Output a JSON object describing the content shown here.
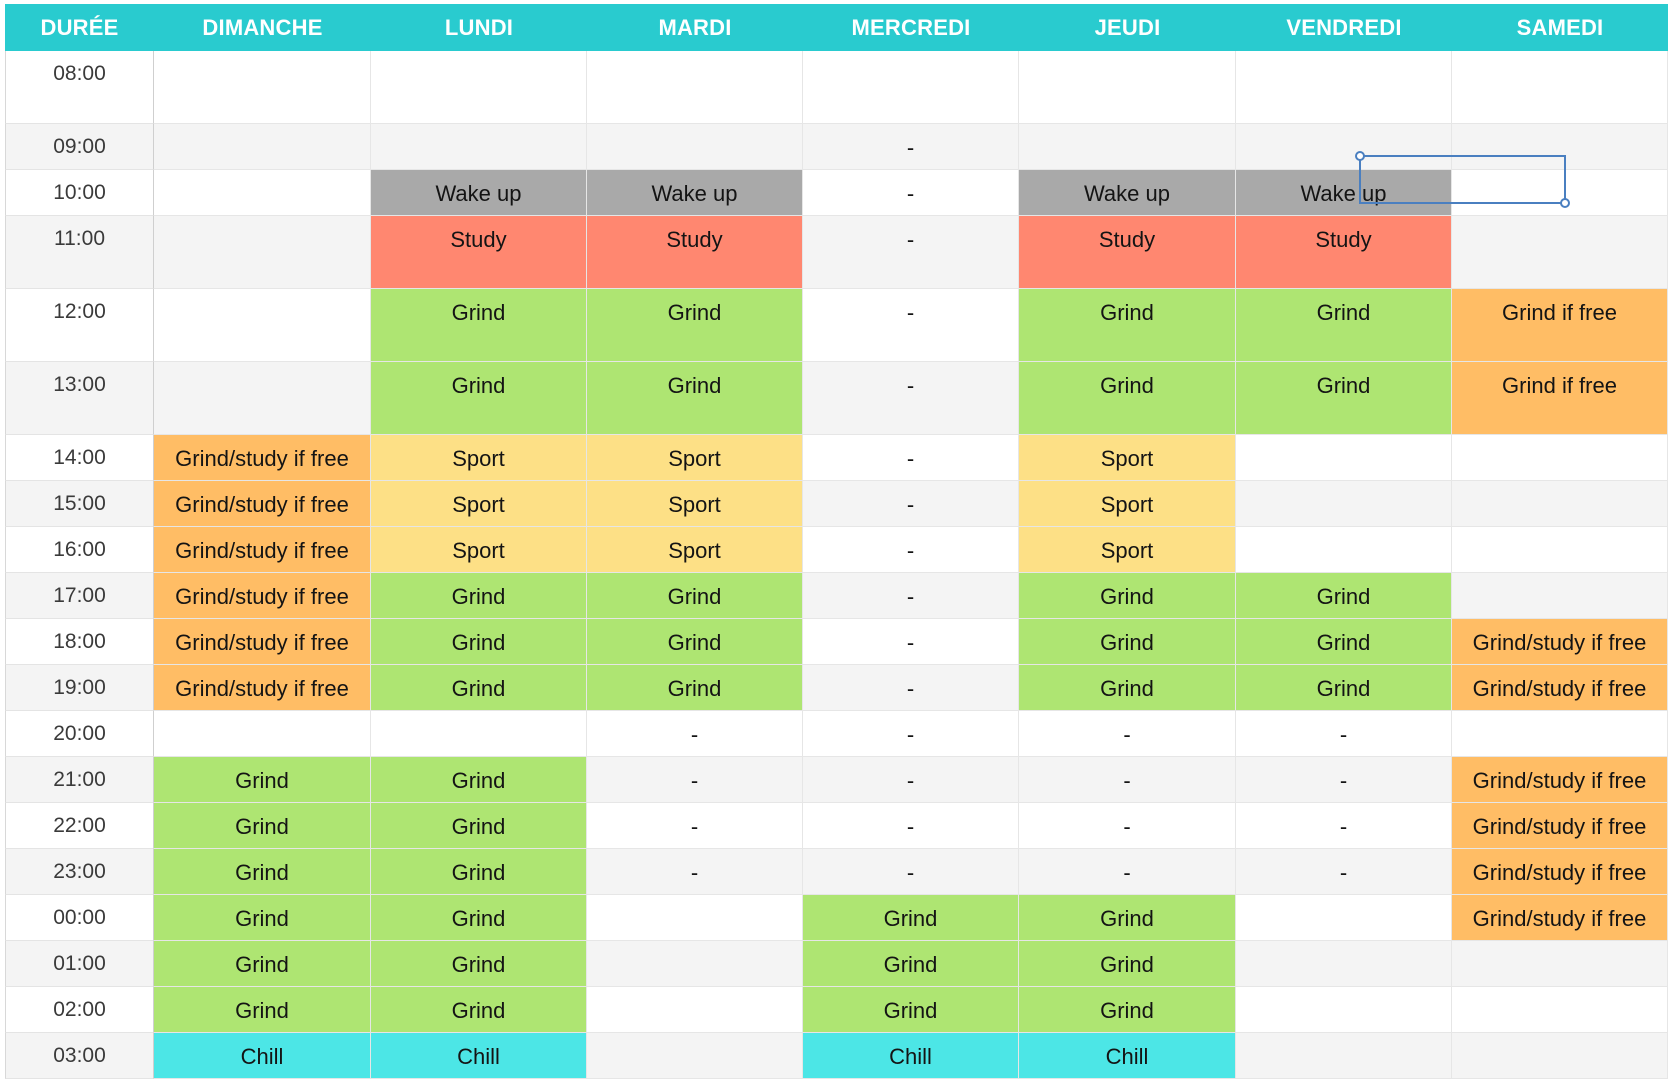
{
  "headers": [
    "DURÉE",
    "DIMANCHE",
    "LUNDI",
    "MARDI",
    "MERCREDI",
    "JEUDI",
    "VENDREDI",
    "SAMEDI"
  ],
  "rows": [
    {
      "time": "08:00",
      "tall": true,
      "cells": [
        {
          "t": "",
          "c": ""
        },
        {
          "t": "",
          "c": ""
        },
        {
          "t": "",
          "c": ""
        },
        {
          "t": "",
          "c": ""
        },
        {
          "t": "",
          "c": ""
        },
        {
          "t": "",
          "c": ""
        },
        {
          "t": "",
          "c": ""
        }
      ]
    },
    {
      "time": "09:00",
      "tall": false,
      "cells": [
        {
          "t": "",
          "c": ""
        },
        {
          "t": "",
          "c": ""
        },
        {
          "t": "",
          "c": ""
        },
        {
          "t": "-",
          "c": ""
        },
        {
          "t": "",
          "c": ""
        },
        {
          "t": "",
          "c": ""
        },
        {
          "t": "",
          "c": ""
        }
      ]
    },
    {
      "time": "10:00",
      "tall": false,
      "cells": [
        {
          "t": "",
          "c": ""
        },
        {
          "t": "Wake up",
          "c": "wake"
        },
        {
          "t": "Wake up",
          "c": "wake"
        },
        {
          "t": "-",
          "c": ""
        },
        {
          "t": "Wake up",
          "c": "wake"
        },
        {
          "t": "Wake up",
          "c": "wake"
        },
        {
          "t": "",
          "c": ""
        }
      ]
    },
    {
      "time": "11:00",
      "tall": true,
      "cells": [
        {
          "t": "",
          "c": ""
        },
        {
          "t": "Study",
          "c": "study"
        },
        {
          "t": "Study",
          "c": "study"
        },
        {
          "t": "-",
          "c": ""
        },
        {
          "t": "Study",
          "c": "study"
        },
        {
          "t": "Study",
          "c": "study"
        },
        {
          "t": "",
          "c": ""
        }
      ]
    },
    {
      "time": "12:00",
      "tall": true,
      "cells": [
        {
          "t": "",
          "c": ""
        },
        {
          "t": "Grind",
          "c": "grind"
        },
        {
          "t": "Grind",
          "c": "grind"
        },
        {
          "t": "-",
          "c": ""
        },
        {
          "t": "Grind",
          "c": "grind"
        },
        {
          "t": "Grind",
          "c": "grind"
        },
        {
          "t": "Grind if free",
          "c": "ifree"
        }
      ]
    },
    {
      "time": "13:00",
      "tall": true,
      "cells": [
        {
          "t": "",
          "c": ""
        },
        {
          "t": "Grind",
          "c": "grind"
        },
        {
          "t": "Grind",
          "c": "grind"
        },
        {
          "t": "-",
          "c": ""
        },
        {
          "t": "Grind",
          "c": "grind"
        },
        {
          "t": "Grind",
          "c": "grind"
        },
        {
          "t": "Grind if free",
          "c": "ifree"
        }
      ]
    },
    {
      "time": "14:00",
      "tall": false,
      "cells": [
        {
          "t": "Grind/study if free",
          "c": "ifree"
        },
        {
          "t": "Sport",
          "c": "sport"
        },
        {
          "t": "Sport",
          "c": "sport"
        },
        {
          "t": "-",
          "c": ""
        },
        {
          "t": "Sport",
          "c": "sport"
        },
        {
          "t": "",
          "c": ""
        },
        {
          "t": "",
          "c": ""
        }
      ]
    },
    {
      "time": "15:00",
      "tall": false,
      "cells": [
        {
          "t": "Grind/study if free",
          "c": "ifree"
        },
        {
          "t": "Sport",
          "c": "sport"
        },
        {
          "t": "Sport",
          "c": "sport"
        },
        {
          "t": "-",
          "c": ""
        },
        {
          "t": "Sport",
          "c": "sport"
        },
        {
          "t": "",
          "c": ""
        },
        {
          "t": "",
          "c": ""
        }
      ]
    },
    {
      "time": "16:00",
      "tall": false,
      "cells": [
        {
          "t": "Grind/study if free",
          "c": "ifree"
        },
        {
          "t": "Sport",
          "c": "sport"
        },
        {
          "t": "Sport",
          "c": "sport"
        },
        {
          "t": "-",
          "c": ""
        },
        {
          "t": "Sport",
          "c": "sport"
        },
        {
          "t": "",
          "c": ""
        },
        {
          "t": "",
          "c": ""
        }
      ]
    },
    {
      "time": "17:00",
      "tall": false,
      "cells": [
        {
          "t": "Grind/study if free",
          "c": "ifree"
        },
        {
          "t": "Grind",
          "c": "grind"
        },
        {
          "t": "Grind",
          "c": "grind"
        },
        {
          "t": "-",
          "c": ""
        },
        {
          "t": "Grind",
          "c": "grind"
        },
        {
          "t": "Grind",
          "c": "grind"
        },
        {
          "t": "",
          "c": ""
        }
      ]
    },
    {
      "time": "18:00",
      "tall": false,
      "cells": [
        {
          "t": "Grind/study if free",
          "c": "ifree"
        },
        {
          "t": "Grind",
          "c": "grind"
        },
        {
          "t": "Grind",
          "c": "grind"
        },
        {
          "t": "-",
          "c": ""
        },
        {
          "t": "Grind",
          "c": "grind"
        },
        {
          "t": "Grind",
          "c": "grind"
        },
        {
          "t": "Grind/study if free",
          "c": "ifree"
        }
      ]
    },
    {
      "time": "19:00",
      "tall": false,
      "cells": [
        {
          "t": "Grind/study if free",
          "c": "ifree"
        },
        {
          "t": "Grind",
          "c": "grind"
        },
        {
          "t": "Grind",
          "c": "grind"
        },
        {
          "t": "-",
          "c": ""
        },
        {
          "t": "Grind",
          "c": "grind"
        },
        {
          "t": "Grind",
          "c": "grind"
        },
        {
          "t": "Grind/study if free",
          "c": "ifree"
        }
      ]
    },
    {
      "time": "20:00",
      "tall": false,
      "cells": [
        {
          "t": "",
          "c": ""
        },
        {
          "t": "",
          "c": ""
        },
        {
          "t": "-",
          "c": ""
        },
        {
          "t": "-",
          "c": ""
        },
        {
          "t": "-",
          "c": ""
        },
        {
          "t": "-",
          "c": ""
        },
        {
          "t": "",
          "c": ""
        }
      ]
    },
    {
      "time": "21:00",
      "tall": false,
      "cells": [
        {
          "t": "Grind",
          "c": "grind"
        },
        {
          "t": "Grind",
          "c": "grind"
        },
        {
          "t": "-",
          "c": ""
        },
        {
          "t": "-",
          "c": ""
        },
        {
          "t": "-",
          "c": ""
        },
        {
          "t": "-",
          "c": ""
        },
        {
          "t": "Grind/study if free",
          "c": "ifree"
        }
      ]
    },
    {
      "time": "22:00",
      "tall": false,
      "cells": [
        {
          "t": "Grind",
          "c": "grind"
        },
        {
          "t": "Grind",
          "c": "grind"
        },
        {
          "t": "-",
          "c": ""
        },
        {
          "t": "-",
          "c": ""
        },
        {
          "t": "-",
          "c": ""
        },
        {
          "t": "-",
          "c": ""
        },
        {
          "t": "Grind/study if free",
          "c": "ifree"
        }
      ]
    },
    {
      "time": "23:00",
      "tall": false,
      "cells": [
        {
          "t": "Grind",
          "c": "grind"
        },
        {
          "t": "Grind",
          "c": "grind"
        },
        {
          "t": "-",
          "c": ""
        },
        {
          "t": "-",
          "c": ""
        },
        {
          "t": "-",
          "c": ""
        },
        {
          "t": "-",
          "c": ""
        },
        {
          "t": "Grind/study if free",
          "c": "ifree"
        }
      ]
    },
    {
      "time": "00:00",
      "tall": false,
      "cells": [
        {
          "t": "Grind",
          "c": "grind"
        },
        {
          "t": "Grind",
          "c": "grind"
        },
        {
          "t": "",
          "c": ""
        },
        {
          "t": "Grind",
          "c": "grind"
        },
        {
          "t": "Grind",
          "c": "grind"
        },
        {
          "t": "",
          "c": ""
        },
        {
          "t": "Grind/study if free",
          "c": "ifree"
        }
      ]
    },
    {
      "time": "01:00",
      "tall": false,
      "cells": [
        {
          "t": "Grind",
          "c": "grind"
        },
        {
          "t": "Grind",
          "c": "grind"
        },
        {
          "t": "",
          "c": ""
        },
        {
          "t": "Grind",
          "c": "grind"
        },
        {
          "t": "Grind",
          "c": "grind"
        },
        {
          "t": "",
          "c": ""
        },
        {
          "t": "",
          "c": ""
        }
      ]
    },
    {
      "time": "02:00",
      "tall": false,
      "cells": [
        {
          "t": "Grind",
          "c": "grind"
        },
        {
          "t": "Grind",
          "c": "grind"
        },
        {
          "t": "",
          "c": ""
        },
        {
          "t": "Grind",
          "c": "grind"
        },
        {
          "t": "Grind",
          "c": "grind"
        },
        {
          "t": "",
          "c": ""
        },
        {
          "t": "",
          "c": ""
        }
      ]
    },
    {
      "time": "03:00",
      "tall": false,
      "cells": [
        {
          "t": "Chill",
          "c": "chill"
        },
        {
          "t": "Chill",
          "c": "chill"
        },
        {
          "t": "",
          "c": ""
        },
        {
          "t": "Chill",
          "c": "chill"
        },
        {
          "t": "Chill",
          "c": "chill"
        },
        {
          "t": "",
          "c": ""
        },
        {
          "t": "",
          "c": ""
        }
      ]
    }
  ],
  "colors": {
    "header": "#29cbcf",
    "wake": "#a9a9a9",
    "study": "#ff8770",
    "grind": "#aee572",
    "sport": "#fde086",
    "ifree": "#ffbd65",
    "chill": "#4ce6e6",
    "selection": "#4a7fc0"
  },
  "selection": {
    "row": "10:00",
    "column": "SAMEDI"
  }
}
